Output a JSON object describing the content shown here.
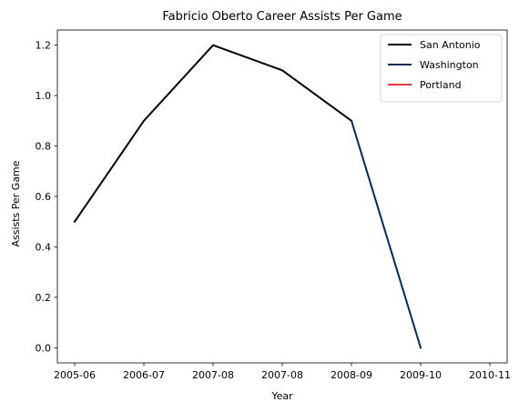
{
  "chart_data": {
    "type": "line",
    "title": "Fabricio Oberto Career Assists Per Game",
    "xlabel": "Year",
    "ylabel": "Assists Per Game",
    "ylim": [
      -0.06,
      1.26
    ],
    "yticks": [
      "0.0",
      "0.2",
      "0.4",
      "0.6",
      "0.8",
      "1.0",
      "1.2"
    ],
    "xticks": [
      "2005-06",
      "2006-07",
      "2007-08",
      "2007-08",
      "2008-09",
      "2009-10",
      "2010-11"
    ],
    "grid": false,
    "legend_position": "top-right",
    "series": [
      {
        "name": "San Antonio",
        "color": "#000000",
        "points": [
          [
            0,
            0.5
          ],
          [
            1,
            0.9
          ],
          [
            2,
            1.2
          ],
          [
            3,
            1.1
          ],
          [
            4,
            0.9
          ]
        ]
      },
      {
        "name": "Washington",
        "color": "#002B5C",
        "points": [
          [
            4,
            0.9
          ],
          [
            5,
            0.0
          ]
        ]
      },
      {
        "name": "Portland",
        "color": "#E03A3E",
        "points": []
      }
    ]
  }
}
